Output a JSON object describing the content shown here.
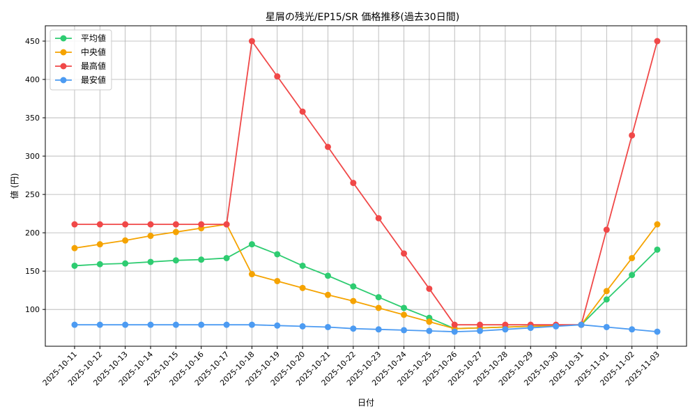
{
  "chart_data": {
    "type": "line",
    "title": "星屑の残光/EP15/SR 価格推移(過去30日間)",
    "xlabel": "日付",
    "ylabel": "値 (円)",
    "ylim": [
      52,
      470
    ],
    "yticks": [
      100,
      150,
      200,
      250,
      300,
      350,
      400,
      450
    ],
    "grid": true,
    "legend_position": "top-left",
    "categories": [
      "2025-10-11",
      "2025-10-12",
      "2025-10-13",
      "2025-10-14",
      "2025-10-15",
      "2025-10-16",
      "2025-10-17",
      "2025-10-18",
      "2025-10-19",
      "2025-10-20",
      "2025-10-21",
      "2025-10-22",
      "2025-10-23",
      "2025-10-24",
      "2025-10-25",
      "2025-10-26",
      "2025-10-27",
      "2025-10-28",
      "2025-10-29",
      "2025-10-30",
      "2025-10-31",
      "2025-11-01",
      "2025-11-02",
      "2025-11-03"
    ],
    "series": [
      {
        "name": "平均値",
        "color": "#2ecc71",
        "values": [
          157,
          159,
          160,
          162,
          164,
          165,
          167,
          185,
          172,
          157,
          144,
          130,
          116,
          102,
          89,
          75,
          76,
          77,
          78,
          79,
          80,
          113,
          145,
          178
        ]
      },
      {
        "name": "中央値",
        "color": "#f5a300",
        "values": [
          180,
          185,
          190,
          196,
          201,
          206,
          211,
          146,
          137,
          128,
          119,
          111,
          102,
          93,
          84,
          75,
          76,
          77,
          78,
          79,
          80,
          124,
          167,
          211
        ]
      },
      {
        "name": "最高値",
        "color": "#f04848",
        "values": [
          211,
          211,
          211,
          211,
          211,
          211,
          211,
          450,
          404,
          358,
          312,
          265,
          219,
          173,
          127,
          80,
          80,
          80,
          80,
          80,
          80,
          204,
          327,
          450
        ]
      },
      {
        "name": "最安値",
        "color": "#4c9bf2",
        "values": [
          80,
          80,
          80,
          80,
          80,
          80,
          80,
          80,
          79,
          78,
          77,
          75,
          74,
          73,
          72,
          71,
          72,
          74,
          76,
          78,
          80,
          77,
          74,
          71
        ]
      }
    ]
  }
}
